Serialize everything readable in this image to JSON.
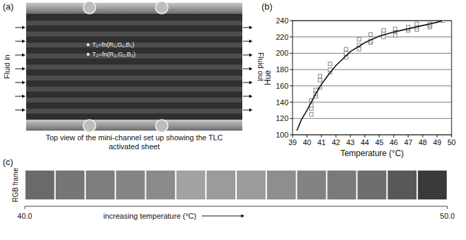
{
  "panel_a": {
    "label": "(a)",
    "inlet_label": "Fluid in",
    "outlet_label": "Fluid out",
    "points": [
      "T₁=fn(R₁,G₁,B₁)",
      "T₂=fn(R₂,G₂,B₂)"
    ],
    "caption": "Top view of the mini-channel set up showing the TLC activated sheet"
  },
  "chart_data": {
    "type": "scatter",
    "panel_label": "(b)",
    "x_label": "Temperature (°C)",
    "y_label": "Hue",
    "xlim": [
      39,
      50
    ],
    "ylim": [
      100,
      240
    ],
    "xticks": [
      39,
      40,
      41,
      42,
      43,
      44,
      45,
      46,
      47,
      48,
      49,
      50
    ],
    "yticks": [
      100,
      120,
      140,
      160,
      180,
      200,
      220,
      240
    ],
    "grid": true,
    "series": [
      {
        "type": "scatter",
        "marker": "square-open",
        "color": "#777777",
        "x": [
          40.3,
          40.3,
          40.3,
          40.3,
          40.6,
          40.6,
          40.6,
          40.9,
          40.9,
          40.9,
          41.6,
          41.6,
          41.6,
          42.7,
          42.7,
          42.7,
          43.6,
          43.6,
          43.6,
          44.4,
          44.4,
          44.4,
          45.3,
          45.3,
          45.3,
          46.1,
          46.1,
          46.1,
          47.0,
          47.0,
          47.0,
          47.6,
          47.6,
          47.6,
          48.5,
          48.5,
          48.5,
          49.4
        ],
        "values": [
          125,
          132,
          136,
          142,
          147,
          150,
          155,
          158,
          167,
          172,
          177,
          180,
          187,
          195,
          200,
          205,
          205,
          210,
          217,
          213,
          215,
          223,
          220,
          225,
          228,
          222,
          227,
          230,
          228,
          230,
          232,
          229,
          232,
          236,
          232,
          234,
          236,
          240
        ]
      },
      {
        "type": "line",
        "line_style": "solid",
        "color": "#111111",
        "x": [
          39.3,
          39.6,
          40,
          40.5,
          41,
          41.5,
          42,
          43,
          44,
          45,
          46,
          47,
          48,
          49,
          49.4
        ],
        "values": [
          105,
          118,
          130,
          147,
          162,
          174,
          185,
          202,
          213,
          221,
          226,
          230,
          234,
          238,
          240
        ]
      }
    ]
  },
  "panel_c": {
    "label": "(c)",
    "y_label": "RGB frame",
    "axis_label": "increasing temperature (°C)",
    "range": [
      {
        "value": 40,
        "label": "40.0"
      },
      {
        "value": 50,
        "label": "50.0"
      }
    ],
    "colors": [
      "#6a6a6a",
      "#767676",
      "#7d7d7d",
      "#848484",
      "#8b8b8b",
      "#a2a2a2",
      "#9b9b9b",
      "#9c9c9c",
      "#8e8e8e",
      "#838383",
      "#7a7a7a",
      "#6d6d6d",
      "#585858",
      "#3a3a3a"
    ]
  }
}
